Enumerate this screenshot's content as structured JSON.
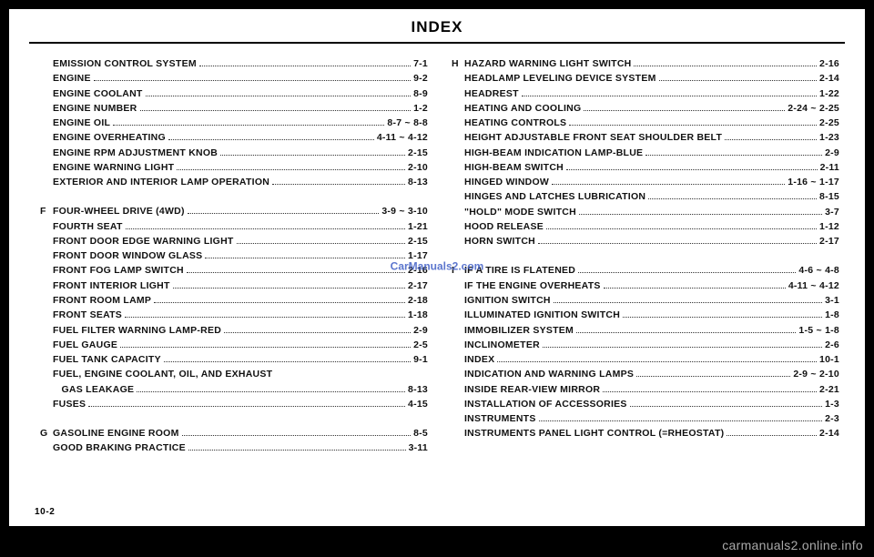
{
  "title": "INDEX",
  "page_number": "10-2",
  "watermark": "CarManuals2.com",
  "footer": "carmanuals2.online.info",
  "left": [
    {
      "letter": "",
      "label": "EMISSION   CONTROL   SYSTEM",
      "page": "7-1"
    },
    {
      "letter": "",
      "label": "ENGINE",
      "page": "9-2"
    },
    {
      "letter": "",
      "label": "ENGINE    COOLANT",
      "page": "8-9"
    },
    {
      "letter": "",
      "label": "ENGINE    NUMBER",
      "page": "1-2"
    },
    {
      "letter": "",
      "label": "ENGINE   OIL",
      "page": "8-7 ~ 8-8"
    },
    {
      "letter": "",
      "label": "ENGINE     OVERHEATING",
      "page": "4-11 ~ 4-12"
    },
    {
      "letter": "",
      "label": "ENGINE   RPM   ADJUSTMENT   KNOB",
      "page": "2-15"
    },
    {
      "letter": "",
      "label": "ENGINE   WARNING   LIGHT",
      "page": "2-10"
    },
    {
      "letter": "",
      "label": "EXTERIOR   AND   INTERIOR   LAMP   OPERATION",
      "page": "8-13"
    },
    {
      "spacer": true
    },
    {
      "letter": "F",
      "label": "FOUR-WHEEL   DRIVE   (4WD)",
      "page": "3-9 ~ 3-10"
    },
    {
      "letter": "",
      "label": "FOURTH    SEAT",
      "page": "1-21"
    },
    {
      "letter": "",
      "label": "FRONT   DOOR   EDGE   WARNING   LIGHT",
      "page": "2-15"
    },
    {
      "letter": "",
      "label": "FRONT   DOOR   WINDOW   GLASS",
      "page": "1-17"
    },
    {
      "letter": "",
      "label": "FRONT   FOG   LAMP    SWITCH",
      "page": "2-16"
    },
    {
      "letter": "",
      "label": "FRONT   INTERIOR   LIGHT",
      "page": "2-17"
    },
    {
      "letter": "",
      "label": "FRONT   ROOM   LAMP",
      "page": "2-18"
    },
    {
      "letter": "",
      "label": "FRONT    SEATS",
      "page": "1-18"
    },
    {
      "letter": "",
      "label": "FUEL   FILTER   WARNING   LAMP-RED",
      "page": "2-9"
    },
    {
      "letter": "",
      "label": "FUEL   GAUGE",
      "page": "2-5"
    },
    {
      "letter": "",
      "label": "FUEL   TANK   CAPACITY",
      "page": "9-1"
    },
    {
      "letter": "",
      "label": "FUEL,   ENGINE   COOLANT,   OIL,   AND   EXHAUST",
      "nopage": true
    },
    {
      "letter": "",
      "label": "GAS   LEAKAGE",
      "page": "8-13",
      "indent": true
    },
    {
      "letter": "",
      "label": "FUSES",
      "page": "4-15"
    },
    {
      "spacer": true
    },
    {
      "letter": "G",
      "label": "GASOLINE   ENGINE   ROOM",
      "page": "8-5"
    },
    {
      "letter": "",
      "label": "GOOD   BRAKING   PRACTICE",
      "page": "3-11"
    }
  ],
  "right": [
    {
      "letter": "H",
      "label": "HAZARD   WARNING   LIGHT   SWITCH",
      "page": "2-16"
    },
    {
      "letter": "",
      "label": "HEADLAMP   LEVELING   DEVICE   SYSTEM",
      "page": "2-14"
    },
    {
      "letter": "",
      "label": "HEADREST",
      "page": "1-22"
    },
    {
      "letter": "",
      "label": "HEATING   AND   COOLING",
      "page": "2-24 ~ 2-25"
    },
    {
      "letter": "",
      "label": "HEATING     CONTROLS",
      "page": "2-25"
    },
    {
      "letter": "",
      "label": "HEIGHT   ADJUSTABLE   FRONT   SEAT   SHOULDER   BELT",
      "page": "1-23"
    },
    {
      "letter": "",
      "label": "HIGH-BEAM   INDICATION   LAMP-BLUE",
      "page": "2-9"
    },
    {
      "letter": "",
      "label": "HIGH-BEAM    SWITCH",
      "page": "2-11"
    },
    {
      "letter": "",
      "label": "HINGED    WINDOW",
      "page": "1-16 ~ 1-17"
    },
    {
      "letter": "",
      "label": "HINGES   AND   LATCHES   LUBRICATION",
      "page": "8-15"
    },
    {
      "letter": "",
      "label": "\"HOLD\"   MODE   SWITCH",
      "page": "3-7"
    },
    {
      "letter": "",
      "label": "HOOD    RELEASE",
      "page": "1-12"
    },
    {
      "letter": "",
      "label": "HORN   SWITCH",
      "page": "2-17"
    },
    {
      "spacer": true
    },
    {
      "letter": "I",
      "label": "IF   A   TIRE   IS   FLATENED",
      "page": "4-6 ~ 4-8"
    },
    {
      "letter": "",
      "label": "IF   THE   ENGINE   OVERHEATS",
      "page": "4-11 ~ 4-12"
    },
    {
      "letter": "",
      "label": "IGNITION    SWITCH",
      "page": "3-1"
    },
    {
      "letter": "",
      "label": "ILLUMINATED   IGNITION   SWITCH",
      "page": "1-8"
    },
    {
      "letter": "",
      "label": "IMMOBILIZER    SYSTEM",
      "page": "1-5 ~ 1-8"
    },
    {
      "letter": "",
      "label": "INCLINOMETER",
      "page": "2-6"
    },
    {
      "letter": "",
      "label": "INDEX",
      "page": "10-1"
    },
    {
      "letter": "",
      "label": "INDICATION   AND   WARNING   LAMPS",
      "page": "2-9 ~ 2-10"
    },
    {
      "letter": "",
      "label": "INSIDE   REAR-VIEW   MIRROR",
      "page": "2-21"
    },
    {
      "letter": "",
      "label": "INSTALLATION   OF   ACCESSORIES",
      "page": "1-3"
    },
    {
      "letter": "",
      "label": "INSTRUMENTS",
      "page": "2-3"
    },
    {
      "letter": "",
      "label": "INSTRUMENTS   PANEL   LIGHT   CONTROL   (=RHEOSTAT)",
      "page": "2-14"
    }
  ]
}
